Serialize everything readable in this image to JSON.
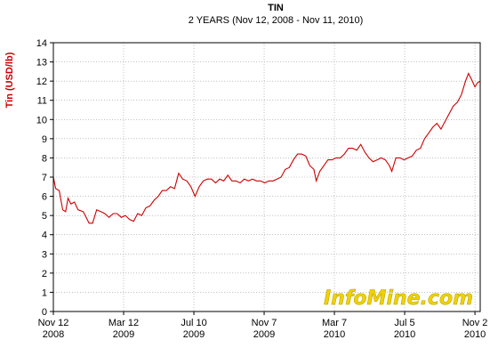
{
  "chart_data": {
    "type": "line",
    "title": "TIN",
    "subtitle": "2 YEARS (Nov 12, 2008 - Nov 11, 2010)",
    "xlabel": "",
    "ylabel": "Tin (USD/lb)",
    "ylim": [
      0,
      14
    ],
    "y_ticks": [
      0,
      1,
      2,
      3,
      4,
      5,
      6,
      7,
      8,
      9,
      10,
      11,
      12,
      13,
      14
    ],
    "xlim": [
      "2008-11-12",
      "2010-11-11"
    ],
    "x_ticks": [
      {
        "date": "2008-11-12",
        "label1": "Nov 12",
        "label2": "2008"
      },
      {
        "date": "2009-03-12",
        "label1": "Mar 12",
        "label2": "2009"
      },
      {
        "date": "2009-07-10",
        "label1": "Jul 10",
        "label2": "2009"
      },
      {
        "date": "2009-11-07",
        "label1": "Nov 7",
        "label2": "2009"
      },
      {
        "date": "2010-03-07",
        "label1": "Mar 7",
        "label2": "2010"
      },
      {
        "date": "2010-07-05",
        "label1": "Jul 5",
        "label2": "2010"
      },
      {
        "date": "2010-11-02",
        "label1": "Nov 2",
        "label2": "2010"
      }
    ],
    "grid": true,
    "series": [
      {
        "color": "#cc0000",
        "points": [
          [
            "2008-11-12",
            7.0
          ],
          [
            "2008-11-16",
            6.4
          ],
          [
            "2008-11-22",
            6.3
          ],
          [
            "2008-11-28",
            5.3
          ],
          [
            "2008-12-03",
            5.2
          ],
          [
            "2008-12-07",
            5.9
          ],
          [
            "2008-12-12",
            5.6
          ],
          [
            "2008-12-18",
            5.7
          ],
          [
            "2008-12-24",
            5.3
          ],
          [
            "2009-01-02",
            5.2
          ],
          [
            "2009-01-12",
            4.6
          ],
          [
            "2009-01-18",
            4.6
          ],
          [
            "2009-01-25",
            5.3
          ],
          [
            "2009-02-01",
            5.2
          ],
          [
            "2009-02-08",
            5.1
          ],
          [
            "2009-02-15",
            4.9
          ],
          [
            "2009-02-22",
            5.1
          ],
          [
            "2009-03-01",
            5.1
          ],
          [
            "2009-03-08",
            4.9
          ],
          [
            "2009-03-15",
            5.0
          ],
          [
            "2009-03-22",
            4.8
          ],
          [
            "2009-03-29",
            4.7
          ],
          [
            "2009-04-05",
            5.1
          ],
          [
            "2009-04-12",
            5.0
          ],
          [
            "2009-04-19",
            5.4
          ],
          [
            "2009-04-26",
            5.5
          ],
          [
            "2009-05-03",
            5.8
          ],
          [
            "2009-05-10",
            6.0
          ],
          [
            "2009-05-17",
            6.3
          ],
          [
            "2009-05-24",
            6.3
          ],
          [
            "2009-05-31",
            6.5
          ],
          [
            "2009-06-07",
            6.4
          ],
          [
            "2009-06-14",
            7.2
          ],
          [
            "2009-06-21",
            6.9
          ],
          [
            "2009-06-28",
            6.8
          ],
          [
            "2009-07-05",
            6.5
          ],
          [
            "2009-07-12",
            6.0
          ],
          [
            "2009-07-19",
            6.5
          ],
          [
            "2009-07-26",
            6.8
          ],
          [
            "2009-08-02",
            6.9
          ],
          [
            "2009-08-09",
            6.9
          ],
          [
            "2009-08-16",
            6.7
          ],
          [
            "2009-08-23",
            6.9
          ],
          [
            "2009-08-30",
            6.8
          ],
          [
            "2009-09-06",
            7.1
          ],
          [
            "2009-09-13",
            6.8
          ],
          [
            "2009-09-20",
            6.8
          ],
          [
            "2009-09-27",
            6.7
          ],
          [
            "2009-10-04",
            6.9
          ],
          [
            "2009-10-11",
            6.8
          ],
          [
            "2009-10-18",
            6.9
          ],
          [
            "2009-10-25",
            6.8
          ],
          [
            "2009-11-01",
            6.8
          ],
          [
            "2009-11-08",
            6.7
          ],
          [
            "2009-11-15",
            6.8
          ],
          [
            "2009-11-22",
            6.8
          ],
          [
            "2009-11-29",
            6.9
          ],
          [
            "2009-12-06",
            7.0
          ],
          [
            "2009-12-13",
            7.4
          ],
          [
            "2009-12-20",
            7.5
          ],
          [
            "2009-12-27",
            7.9
          ],
          [
            "2010-01-03",
            8.2
          ],
          [
            "2010-01-10",
            8.2
          ],
          [
            "2010-01-17",
            8.1
          ],
          [
            "2010-01-24",
            7.6
          ],
          [
            "2010-01-31",
            7.4
          ],
          [
            "2010-02-04",
            6.8
          ],
          [
            "2010-02-10",
            7.3
          ],
          [
            "2010-02-17",
            7.6
          ],
          [
            "2010-02-24",
            7.9
          ],
          [
            "2010-03-03",
            7.9
          ],
          [
            "2010-03-10",
            8.0
          ],
          [
            "2010-03-17",
            8.0
          ],
          [
            "2010-03-24",
            8.2
          ],
          [
            "2010-03-31",
            8.5
          ],
          [
            "2010-04-07",
            8.5
          ],
          [
            "2010-04-14",
            8.4
          ],
          [
            "2010-04-21",
            8.7
          ],
          [
            "2010-04-28",
            8.3
          ],
          [
            "2010-05-05",
            8.0
          ],
          [
            "2010-05-12",
            7.8
          ],
          [
            "2010-05-19",
            7.9
          ],
          [
            "2010-05-26",
            8.0
          ],
          [
            "2010-06-02",
            7.9
          ],
          [
            "2010-06-09",
            7.6
          ],
          [
            "2010-06-13",
            7.3
          ],
          [
            "2010-06-20",
            8.0
          ],
          [
            "2010-06-27",
            8.0
          ],
          [
            "2010-07-04",
            7.9
          ],
          [
            "2010-07-11",
            8.0
          ],
          [
            "2010-07-18",
            8.1
          ],
          [
            "2010-07-25",
            8.4
          ],
          [
            "2010-08-01",
            8.5
          ],
          [
            "2010-08-08",
            9.0
          ],
          [
            "2010-08-15",
            9.3
          ],
          [
            "2010-08-22",
            9.6
          ],
          [
            "2010-08-29",
            9.8
          ],
          [
            "2010-09-05",
            9.5
          ],
          [
            "2010-09-12",
            9.9
          ],
          [
            "2010-09-19",
            10.3
          ],
          [
            "2010-09-26",
            10.7
          ],
          [
            "2010-10-03",
            10.9
          ],
          [
            "2010-10-10",
            11.3
          ],
          [
            "2010-10-17",
            12.0
          ],
          [
            "2010-10-22",
            12.4
          ],
          [
            "2010-10-27",
            12.1
          ],
          [
            "2010-11-02",
            11.7
          ],
          [
            "2010-11-06",
            11.9
          ],
          [
            "2010-11-11",
            12.0
          ]
        ]
      }
    ],
    "watermark": "InfoMine.com",
    "watermark_color": "#f0d200"
  }
}
